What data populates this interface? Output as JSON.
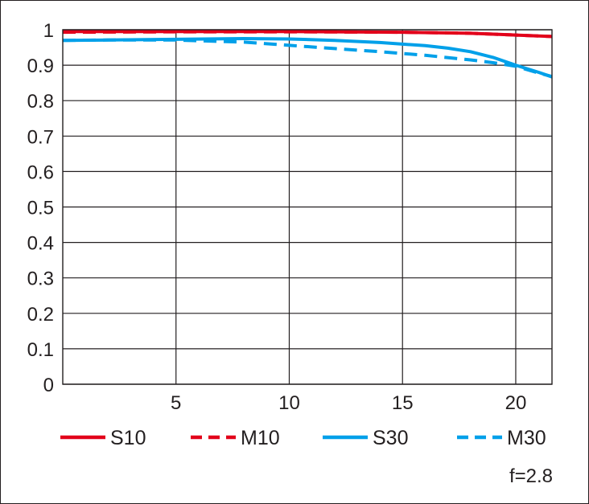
{
  "chart_data": {
    "type": "line",
    "xlim": [
      0,
      21.6
    ],
    "ylim": [
      0,
      1
    ],
    "x_ticks": [
      5,
      10,
      15,
      20
    ],
    "y_ticks": [
      0,
      0.1,
      0.2,
      0.3,
      0.4,
      0.5,
      0.6,
      0.7,
      0.8,
      0.9,
      1
    ],
    "x_tick_labels": [
      "5",
      "10",
      "15",
      "20"
    ],
    "y_tick_labels": [
      "0",
      "0.1",
      "0.2",
      "0.3",
      "0.4",
      "0.5",
      "0.6",
      "0.7",
      "0.8",
      "0.9",
      "1"
    ],
    "grid": true,
    "legend_position": "bottom",
    "annotation": "f=2.8",
    "series": [
      {
        "name": "S10",
        "color": "#e2001a",
        "style": "solid",
        "x": [
          0,
          5,
          10,
          15,
          18,
          20,
          21.6
        ],
        "y": [
          0.995,
          0.995,
          0.995,
          0.993,
          0.99,
          0.985,
          0.981
        ]
      },
      {
        "name": "M10",
        "color": "#e2001a",
        "style": "dashed",
        "x": [
          0,
          5,
          10,
          15,
          18,
          20,
          21.6
        ],
        "y": [
          0.993,
          0.994,
          0.994,
          0.993,
          0.99,
          0.985,
          0.981
        ]
      },
      {
        "name": "S30",
        "color": "#00a0e9",
        "style": "solid",
        "x": [
          0,
          2,
          5,
          8,
          10,
          12,
          14,
          16,
          17,
          18,
          19,
          20,
          21,
          21.6
        ],
        "y": [
          0.97,
          0.971,
          0.973,
          0.975,
          0.974,
          0.97,
          0.964,
          0.955,
          0.948,
          0.938,
          0.922,
          0.9,
          0.88,
          0.867
        ]
      },
      {
        "name": "M30",
        "color": "#00a0e9",
        "style": "dashed",
        "x": [
          0,
          2,
          5,
          8,
          10,
          12,
          14,
          16,
          18,
          19,
          20,
          21,
          21.6
        ],
        "y": [
          0.97,
          0.971,
          0.971,
          0.965,
          0.956,
          0.947,
          0.938,
          0.928,
          0.915,
          0.907,
          0.897,
          0.878,
          0.868
        ]
      }
    ]
  }
}
